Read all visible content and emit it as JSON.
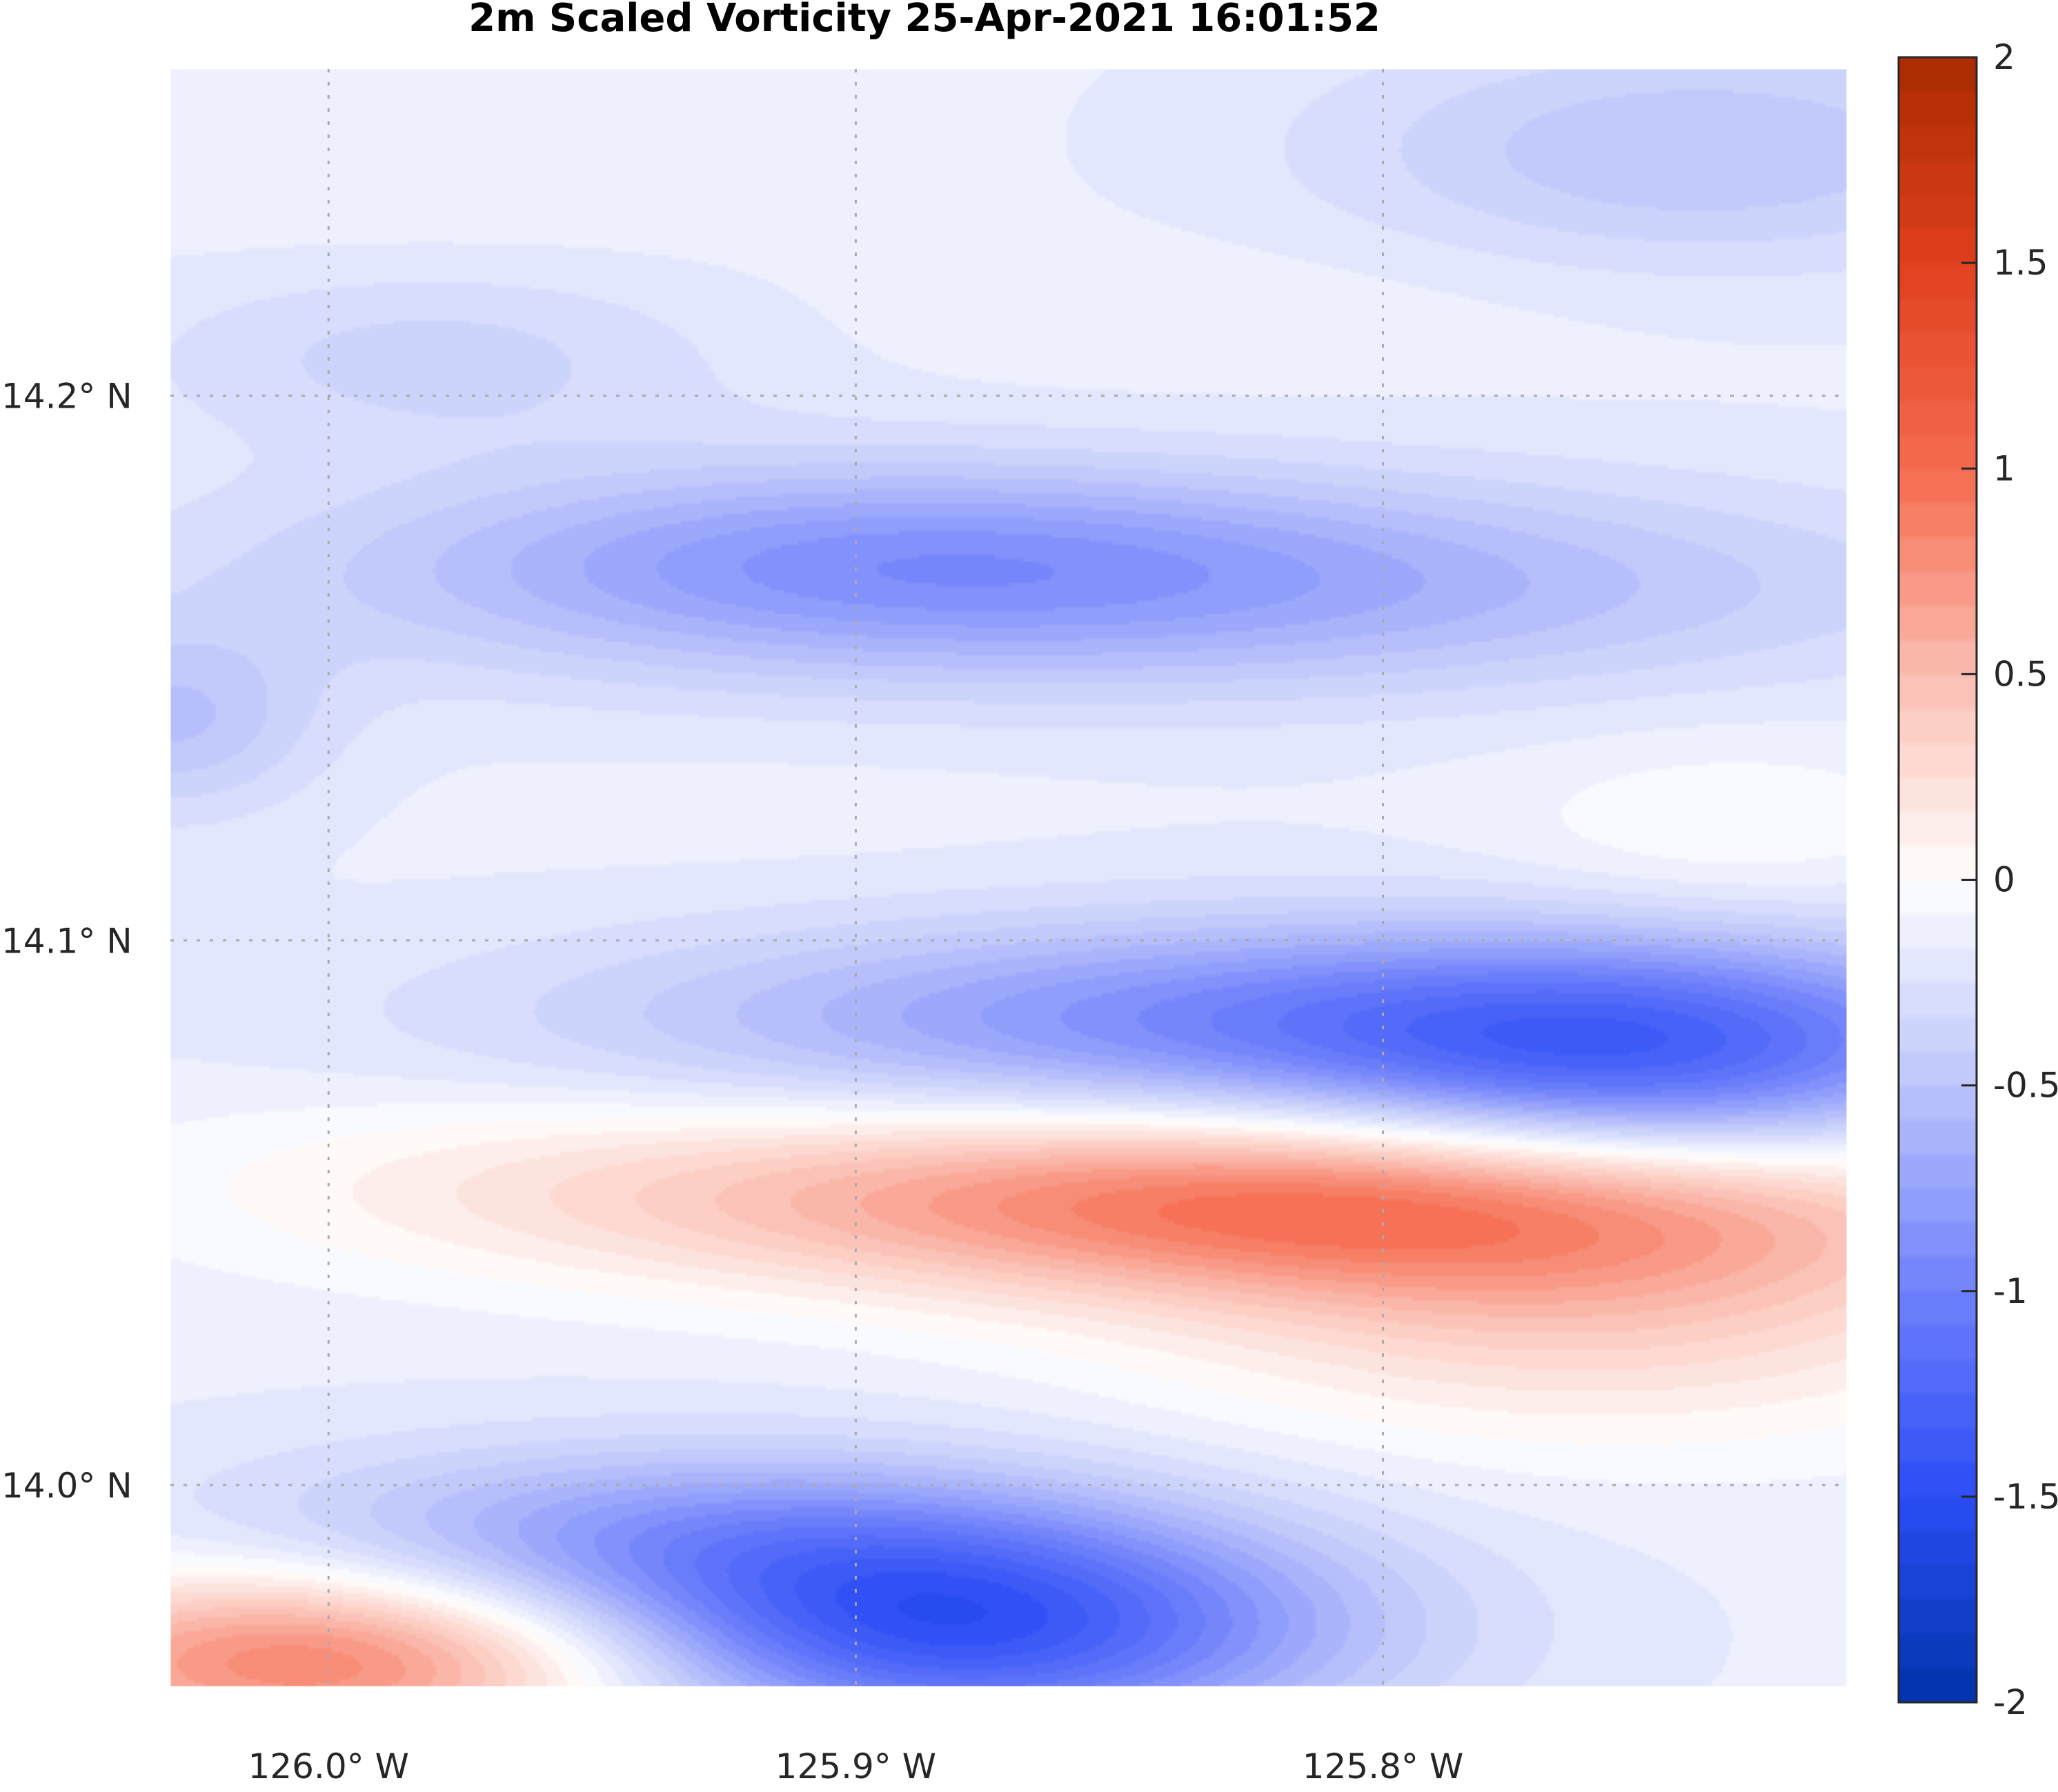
{
  "chart_data": {
    "type": "heatmap",
    "title": "2m Scaled Vorticity  25-Apr-2021 16:01:52",
    "xlabel": "",
    "ylabel": "",
    "x_ticks": [
      {
        "value": -126.0,
        "label": "126.0° W"
      },
      {
        "value": -125.9,
        "label": "125.9° W"
      },
      {
        "value": -125.8,
        "label": "125.8° W"
      }
    ],
    "y_ticks": [
      {
        "value": 14.2,
        "label": "14.2° N"
      },
      {
        "value": 14.1,
        "label": "14.1° N"
      },
      {
        "value": 14.0,
        "label": "14.0° N"
      }
    ],
    "xlim": [
      -126.03,
      -125.712
    ],
    "ylim": [
      13.963,
      14.26
    ],
    "grid": true,
    "colorbar": {
      "ticks": [
        {
          "value": 2,
          "label": "2"
        },
        {
          "value": 1.5,
          "label": "1.5"
        },
        {
          "value": 1,
          "label": "1"
        },
        {
          "value": 0.5,
          "label": "0.5"
        },
        {
          "value": 0,
          "label": "0"
        },
        {
          "value": -0.5,
          "label": "-0.5"
        },
        {
          "value": -1,
          "label": "-1"
        },
        {
          "value": -1.5,
          "label": "-1.5"
        },
        {
          "value": -2,
          "label": "-2"
        }
      ],
      "range": [
        -2,
        2
      ],
      "colormap": [
        "#0033aa",
        "#2b4df5",
        "#6f80fb",
        "#bcc5fb",
        "#ffffff",
        "#fbbdb0",
        "#f56a4e",
        "#e0401f",
        "#aa2a00"
      ]
    },
    "features": [
      {
        "lon": -125.82,
        "lat": 14.052,
        "value": 1.0,
        "sx": 0.085,
        "sy": 0.012
      },
      {
        "lon": -125.76,
        "lat": 14.035,
        "value": 0.5,
        "sx": 0.06,
        "sy": 0.018
      },
      {
        "lon": -125.96,
        "lat": 14.057,
        "value": 0.15,
        "sx": 0.06,
        "sy": 0.012
      },
      {
        "lon": -126.0,
        "lat": 13.968,
        "value": 1.05,
        "sx": 0.045,
        "sy": 0.012
      },
      {
        "lon": -125.88,
        "lat": 13.973,
        "value": -1.2,
        "sx": 0.05,
        "sy": 0.014
      },
      {
        "lon": -125.93,
        "lat": 13.99,
        "value": -0.6,
        "sx": 0.06,
        "sy": 0.012
      },
      {
        "lon": -125.81,
        "lat": 14.085,
        "value": -0.8,
        "sx": 0.09,
        "sy": 0.013
      },
      {
        "lon": -125.75,
        "lat": 14.075,
        "value": -0.7,
        "sx": 0.045,
        "sy": 0.015
      },
      {
        "lon": -125.85,
        "lat": 14.165,
        "value": -0.55,
        "sx": 0.1,
        "sy": 0.014
      },
      {
        "lon": -125.9,
        "lat": 14.172,
        "value": -0.3,
        "sx": 0.06,
        "sy": 0.012
      },
      {
        "lon": -126.03,
        "lat": 14.14,
        "value": -0.35,
        "sx": 0.02,
        "sy": 0.012
      },
      {
        "lon": -125.74,
        "lat": 14.245,
        "value": -0.35,
        "sx": 0.05,
        "sy": 0.015
      },
      {
        "lon": -125.98,
        "lat": 14.207,
        "value": -0.22,
        "sx": 0.04,
        "sy": 0.012
      },
      {
        "lon": -125.735,
        "lat": 14.12,
        "value": 0.15,
        "sx": 0.03,
        "sy": 0.012
      },
      {
        "lon": -125.83,
        "lat": 14.215,
        "value": 0.05,
        "sx": 0.05,
        "sy": 0.01
      },
      {
        "lon": -125.98,
        "lat": 14.24,
        "value": 0.05,
        "sx": 0.05,
        "sy": 0.012
      },
      {
        "lon": -125.91,
        "lat": 14.125,
        "value": 0.02,
        "sx": 0.04,
        "sy": 0.01
      }
    ],
    "background_value": -0.15
  }
}
